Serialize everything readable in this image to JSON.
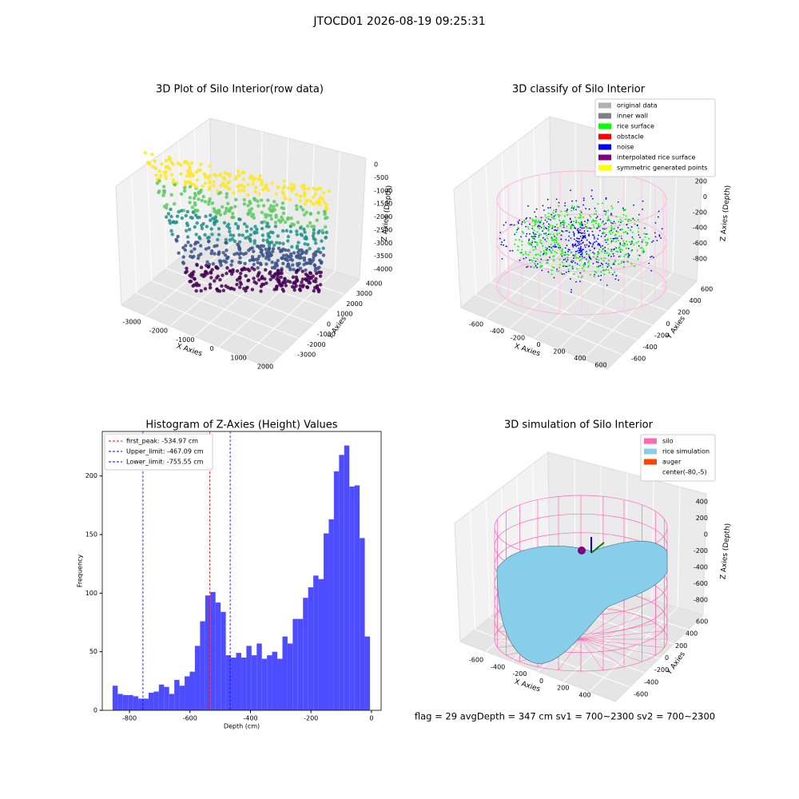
{
  "suptitle": "JTOCD01 2026-08-19 09:25:31",
  "footer": "flag = 29  avgDepth = 347 cm  sv1 = 700~2300  sv2 = 700~2300",
  "chart_data": [
    {
      "type": "scatter3d",
      "title": "3D Plot of Silo Interior(row data)",
      "xlabel": "X Axies",
      "ylabel": "Y Axies",
      "zlabel": "Z Axies (Depth)",
      "xticks": [
        -3000,
        -2000,
        -1000,
        0,
        1000,
        2000
      ],
      "yticks": [
        -3000,
        -2000,
        -1000,
        0,
        1000,
        2000,
        3000,
        4000
      ],
      "zticks": [
        0,
        -500,
        -1000,
        -1500,
        -2000,
        -2500,
        -3000,
        -3500,
        -4000
      ]
    },
    {
      "type": "scatter3d",
      "title": "3D classify of Silo Interior",
      "xlabel": "X Axies",
      "ylabel": "Y Axies",
      "zlabel": "Z Axies (Depth)",
      "xticks": [
        -600,
        -400,
        -200,
        0,
        200,
        400,
        600
      ],
      "yticks": [
        -600,
        -400,
        -200,
        0,
        200,
        400,
        600
      ],
      "zticks": [
        200,
        0,
        -200,
        -400,
        -600,
        -800
      ],
      "legend": [
        {
          "name": "original data",
          "color": "#b0b0b0"
        },
        {
          "name": "inner wall",
          "color": "#808080"
        },
        {
          "name": "rice surface",
          "color": "#00ff00"
        },
        {
          "name": "obstacle",
          "color": "#ff0000"
        },
        {
          "name": "noise",
          "color": "#0000ff"
        },
        {
          "name": "interpolated rice surface",
          "color": "#800080"
        },
        {
          "name": "symmetric generated points",
          "color": "#ffff00"
        }
      ]
    },
    {
      "type": "histogram",
      "title": "Histogram of Z-Axies (Height) Values",
      "xlabel": "Depth (cm)",
      "ylabel": "Frequency",
      "color": "#4d4dff",
      "bins": [
        -856,
        -838.98,
        -821.96,
        -804.94,
        -787.92,
        -770.9,
        -753.88,
        -736.86,
        -719.84,
        -702.82,
        -685.8,
        -668.78,
        -651.76,
        -634.74,
        -617.72,
        -600.7,
        -583.68,
        -566.66,
        -549.64,
        -532.62,
        -515.6,
        -498.58,
        -481.56,
        -464.54,
        -447.52,
        -430.5,
        -413.48,
        -396.46,
        -379.44,
        -362.42,
        -345.4,
        -328.38,
        -311.36,
        -294.34,
        -277.32,
        -260.3,
        -243.28,
        -226.26,
        -209.24,
        -192.22,
        -175.2,
        -158.18,
        -141.16,
        -124.14,
        -107.12,
        -90.1,
        -73.08,
        -56.06,
        -39.04,
        -22.02,
        -5.0
      ],
      "counts": [
        21,
        14,
        13,
        13,
        12,
        10,
        10,
        15,
        16,
        22,
        20,
        14,
        26,
        21,
        29,
        33,
        55,
        76,
        98,
        101,
        92,
        84,
        47,
        45,
        49,
        45,
        55,
        47,
        57,
        44,
        47,
        50,
        44,
        63,
        57,
        78,
        78,
        96,
        105,
        115,
        112,
        151,
        163,
        204,
        218,
        226,
        191,
        192,
        147,
        63
      ],
      "xlim": [
        -890,
        32
      ],
      "ylim": [
        0,
        238
      ],
      "xticks": [
        -800,
        -600,
        -400,
        -200,
        0
      ],
      "yticks": [
        0,
        50,
        100,
        150,
        200
      ],
      "legend_loc": "upper left",
      "lines": [
        {
          "name": "first_peak: -534.97 cm",
          "value": -534.97,
          "color": "#ff0000"
        },
        {
          "name": "Upper_limit: -467.09 cm",
          "value": -467.09,
          "color": "#0000ff"
        },
        {
          "name": "Lower_limit: -755.55 cm",
          "value": -755.55,
          "color": "#0000ff"
        }
      ]
    },
    {
      "type": "surface3d",
      "title": "3D simulation of Silo Interior",
      "xlabel": "X Axies",
      "ylabel": "Y Axies",
      "zlabel": "Z Axies (Depth)",
      "xticks": [
        -600,
        -400,
        -200,
        0,
        200,
        400
      ],
      "yticks": [
        -600,
        -400,
        -200,
        0,
        200,
        400,
        600
      ],
      "zticks": [
        400,
        200,
        0,
        -200,
        -400,
        -600,
        -800
      ],
      "legend": [
        {
          "name": "silo",
          "color": "#ff69b4"
        },
        {
          "name": "rice simulation",
          "color": "#87ceeb"
        },
        {
          "name": "auger",
          "color": "#ff4500"
        },
        {
          "name": "center(-80,-5)"
        }
      ]
    }
  ]
}
